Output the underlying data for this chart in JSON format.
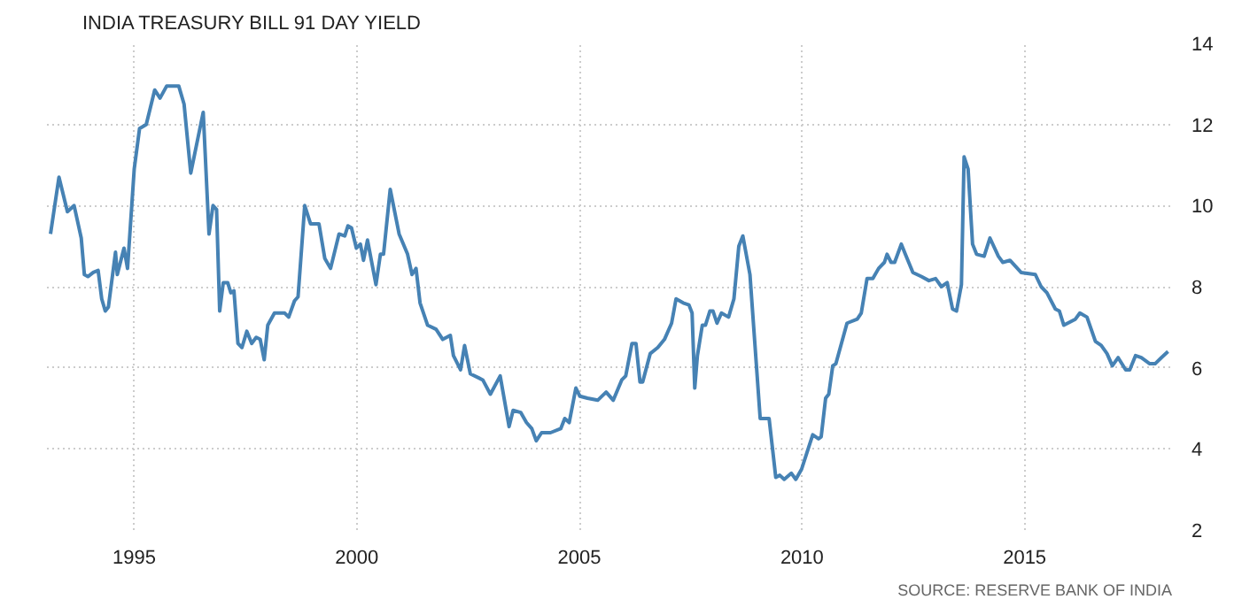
{
  "chart_data": {
    "type": "line",
    "title": "INDIA TREASURY BILL 91 DAY YIELD",
    "annotations": [
      "SOURCE: RESERVE BANK OF INDIA"
    ],
    "x": [
      1993.12,
      1993.31,
      1993.5,
      1993.65,
      1993.81,
      1993.88,
      1993.96,
      1994.08,
      1994.19,
      1994.27,
      1994.35,
      1994.42,
      1994.58,
      1994.62,
      1994.77,
      1994.85,
      1995.0,
      1995.12,
      1995.27,
      1995.46,
      1995.58,
      1995.73,
      1996.0,
      1996.12,
      1996.27,
      1996.55,
      1996.68,
      1996.77,
      1996.85,
      1996.92,
      1997.0,
      1997.1,
      1997.17,
      1997.24,
      1997.33,
      1997.42,
      1997.53,
      1997.64,
      1997.74,
      1997.83,
      1997.92,
      1998.0,
      1998.15,
      1998.38,
      1998.47,
      1998.6,
      1998.68,
      1998.83,
      1998.96,
      1999.15,
      1999.28,
      1999.41,
      1999.6,
      1999.73,
      1999.8,
      1999.88,
      1999.99,
      2000.08,
      2000.15,
      2000.24,
      2000.43,
      2000.53,
      2000.6,
      2000.75,
      2000.95,
      2001.14,
      2001.24,
      2001.33,
      2001.42,
      2001.59,
      2001.78,
      2001.93,
      2002.1,
      2002.17,
      2002.33,
      2002.42,
      2002.55,
      2002.74,
      2002.83,
      2003.0,
      2003.22,
      2003.42,
      2003.51,
      2003.68,
      2003.81,
      2003.93,
      2004.03,
      2004.15,
      2004.35,
      2004.58,
      2004.67,
      2004.77,
      2004.92,
      2005.01,
      2005.18,
      2005.41,
      2005.6,
      2005.76,
      2005.95,
      2006.04,
      2006.18,
      2006.27,
      2006.36,
      2006.42,
      2006.59,
      2006.76,
      2006.91,
      2007.07,
      2007.17,
      2007.33,
      2007.46,
      2007.53,
      2007.59,
      2007.65,
      2007.76,
      2007.83,
      2007.93,
      2008.0,
      2008.09,
      2008.19,
      2008.35,
      2008.47,
      2008.58,
      2008.67,
      2008.83,
      2009.06,
      2009.26,
      2009.41,
      2009.5,
      2009.6,
      2009.76,
      2009.86,
      2009.99,
      2010.24,
      2010.37,
      2010.43,
      2010.53,
      2010.6,
      2010.69,
      2010.76,
      2011.01,
      2011.24,
      2011.33,
      2011.46,
      2011.59,
      2011.72,
      2011.85,
      2011.91,
      2012.0,
      2012.08,
      2012.23,
      2012.32,
      2012.49,
      2012.68,
      2012.85,
      2013.0,
      2013.13,
      2013.26,
      2013.38,
      2013.47,
      2013.58,
      2013.64,
      2013.73,
      2013.83,
      2013.92,
      2014.09,
      2014.22,
      2014.41,
      2014.51,
      2014.67,
      2014.92,
      2015.24,
      2015.37,
      2015.5,
      2015.69,
      2015.78,
      2015.88,
      2016.14,
      2016.24,
      2016.4,
      2016.59,
      2016.72,
      2016.85,
      2016.97,
      2017.1,
      2017.27,
      2017.36,
      2017.49,
      2017.62,
      2017.81,
      2017.93,
      2018.07,
      2018.22
    ],
    "series": [
      {
        "color": "#4682b4",
        "values": [
          9.3,
          10.7,
          9.85,
          10.0,
          9.2,
          8.3,
          8.25,
          8.35,
          8.4,
          7.7,
          7.4,
          7.5,
          8.85,
          8.3,
          8.95,
          8.45,
          10.9,
          11.9,
          12.0,
          12.85,
          12.65,
          12.95,
          12.95,
          12.5,
          10.8,
          12.3,
          9.3,
          10.0,
          9.9,
          7.4,
          8.1,
          8.1,
          7.85,
          7.9,
          6.6,
          6.5,
          6.9,
          6.6,
          6.75,
          6.7,
          6.2,
          7.05,
          7.35,
          7.35,
          7.25,
          7.65,
          7.75,
          10.0,
          9.55,
          9.55,
          8.7,
          8.45,
          9.3,
          9.25,
          9.5,
          9.45,
          8.95,
          9.05,
          8.65,
          9.15,
          8.05,
          8.8,
          8.8,
          10.4,
          9.3,
          8.8,
          8.3,
          8.45,
          7.6,
          7.05,
          6.95,
          6.7,
          6.8,
          6.3,
          5.95,
          6.55,
          5.85,
          5.75,
          5.7,
          5.35,
          5.8,
          4.55,
          4.95,
          4.9,
          4.65,
          4.5,
          4.2,
          4.4,
          4.4,
          4.5,
          4.75,
          4.65,
          5.5,
          5.3,
          5.25,
          5.2,
          5.4,
          5.2,
          5.7,
          5.8,
          6.6,
          6.6,
          5.65,
          5.65,
          6.35,
          6.5,
          6.7,
          7.1,
          7.7,
          7.6,
          7.55,
          7.35,
          5.5,
          6.3,
          7.05,
          7.05,
          7.4,
          7.4,
          7.1,
          7.35,
          7.25,
          7.7,
          9.0,
          9.25,
          8.3,
          4.75,
          4.75,
          3.3,
          3.35,
          3.25,
          3.4,
          3.25,
          3.5,
          4.35,
          4.25,
          4.3,
          5.25,
          5.35,
          6.05,
          6.1,
          7.1,
          7.2,
          7.35,
          8.2,
          8.2,
          8.45,
          8.6,
          8.8,
          8.6,
          8.6,
          9.05,
          8.8,
          8.35,
          8.25,
          8.15,
          8.2,
          8.0,
          8.1,
          7.45,
          7.4,
          8.05,
          11.2,
          10.9,
          9.05,
          8.8,
          8.75,
          9.2,
          8.75,
          8.6,
          8.65,
          8.35,
          8.3,
          8.0,
          7.85,
          7.45,
          7.4,
          7.05,
          7.2,
          7.35,
          7.25,
          6.65,
          6.55,
          6.35,
          6.05,
          6.25,
          5.95,
          5.95,
          6.3,
          6.25,
          6.1,
          6.1,
          6.25,
          6.4
        ]
      }
    ],
    "xlim": [
      1993.04,
      2018.31
    ],
    "ylim": [
      2,
      14
    ],
    "xticks": [
      1995,
      2000,
      2005,
      2010,
      2015
    ],
    "yticks": [
      2,
      4,
      6,
      8,
      10,
      12,
      14
    ],
    "grid": true,
    "marker": "none",
    "line_style": "solid"
  }
}
